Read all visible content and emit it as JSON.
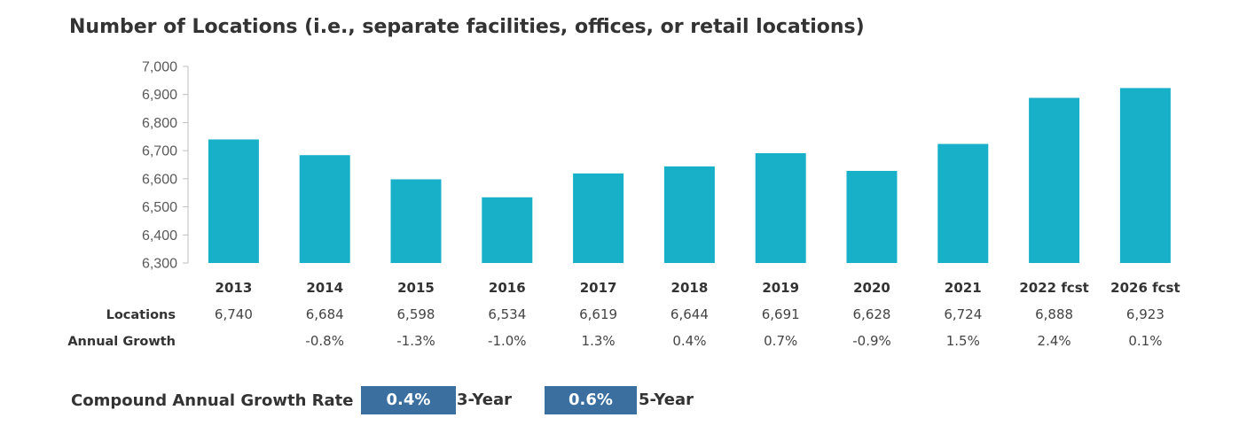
{
  "chart_data": {
    "type": "bar",
    "title": "Number of Locations (i.e., separate facilities, offices, or retail locations)",
    "categories": [
      "2013",
      "2014",
      "2015",
      "2016",
      "2017",
      "2018",
      "2019",
      "2020",
      "2021",
      "2022 fcst",
      "2026 fcst"
    ],
    "series": [
      {
        "values": [
          6740,
          6684,
          6598,
          6534,
          6619,
          6644,
          6691,
          6628,
          6724,
          6888,
          6923
        ]
      }
    ],
    "ylim": [
      6300,
      7000
    ],
    "yticks": [
      "6,300",
      "6,400",
      "6,500",
      "6,600",
      "6,700",
      "6,800",
      "6,900",
      "7,000"
    ],
    "bar_color": "#17b0c8",
    "grid": false
  },
  "table": {
    "rows": [
      {
        "label": "Locations",
        "cells": [
          "6,740",
          "6,684",
          "6,598",
          "6,534",
          "6,619",
          "6,644",
          "6,691",
          "6,628",
          "6,724",
          "6,888",
          "6,923"
        ]
      },
      {
        "label": "Annual Growth",
        "cells": [
          "",
          "-0.8%",
          "-1.3%",
          "-1.0%",
          "1.3%",
          "0.4%",
          "0.7%",
          "-0.9%",
          "1.5%",
          "2.4%",
          "0.1%"
        ]
      }
    ]
  },
  "cagr": {
    "label": "Compound Annual Growth Rate",
    "box_color": "#3a6fa0",
    "items": [
      {
        "value": "0.4%",
        "period": "3-Year"
      },
      {
        "value": "0.6%",
        "period": "5-Year"
      }
    ]
  }
}
